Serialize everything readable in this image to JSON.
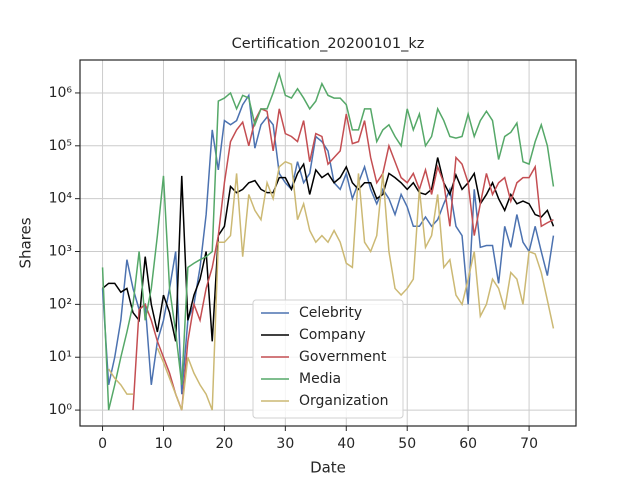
{
  "chart_data": {
    "type": "line",
    "title": "Certification_20200101_kz",
    "xlabel": "Date",
    "ylabel": "Shares",
    "x": [
      0,
      1,
      2,
      3,
      4,
      5,
      6,
      7,
      8,
      9,
      10,
      11,
      12,
      13,
      14,
      15,
      16,
      17,
      18,
      19,
      20,
      21,
      22,
      23,
      24,
      25,
      26,
      27,
      28,
      29,
      30,
      31,
      32,
      33,
      34,
      35,
      36,
      37,
      38,
      39,
      40,
      41,
      42,
      43,
      44,
      45,
      46,
      47,
      48,
      49,
      50,
      51,
      52,
      53,
      54,
      55,
      56,
      57,
      58,
      59,
      60,
      61,
      62,
      63,
      64,
      65,
      66,
      67,
      68,
      69,
      70,
      71,
      72,
      73,
      74
    ],
    "series": [
      {
        "name": "Celebrity",
        "color": "#4c72b0",
        "values": [
          200,
          3,
          10,
          50,
          700,
          200,
          80,
          100,
          3,
          20,
          50,
          200,
          1000,
          2,
          50,
          100,
          500,
          5000,
          200000,
          35000,
          300000,
          250000,
          300000,
          600000,
          900000,
          90000,
          250000,
          350000,
          250000,
          30000,
          20000,
          15000,
          50000,
          20000,
          30000,
          150000,
          120000,
          80000,
          20000,
          15000,
          30000,
          10000,
          20000,
          40000,
          15000,
          8000,
          15000,
          10000,
          5000,
          12000,
          7000,
          3000,
          3000,
          4500,
          3000,
          4000,
          8000,
          15000,
          3000,
          2000,
          100,
          15000,
          1200,
          1300,
          1300,
          250,
          3000,
          1200,
          5000,
          1500,
          1000,
          3000,
          1000,
          350,
          2000
        ]
      },
      {
        "name": "Company",
        "color": "#000000",
        "values": [
          200,
          250,
          250,
          170,
          200,
          70,
          50,
          800,
          100,
          30,
          150,
          70,
          20,
          27000,
          50,
          150,
          300,
          1000,
          20,
          2000,
          3000,
          17000,
          13000,
          15000,
          20000,
          22000,
          15000,
          13000,
          13000,
          25000,
          25000,
          15000,
          30000,
          45000,
          12000,
          35000,
          25000,
          30000,
          20000,
          25000,
          40000,
          20000,
          15000,
          20000,
          20000,
          10000,
          12000,
          30000,
          25000,
          20000,
          15000,
          20000,
          13000,
          12000,
          15000,
          60000,
          20000,
          12000,
          28000,
          15000,
          20000,
          30000,
          8000,
          12000,
          20000,
          10000,
          6000,
          12000,
          8000,
          9000,
          8000,
          5000,
          4500,
          6000,
          3000
        ]
      },
      {
        "name": "Government",
        "color": "#c44e52",
        "values": [
          null,
          null,
          null,
          null,
          null,
          1,
          80,
          100,
          50,
          20,
          10,
          5,
          2,
          1,
          20,
          100,
          50,
          200,
          500,
          2000,
          20000,
          120000,
          200000,
          280000,
          100000,
          300000,
          500000,
          450000,
          80000,
          500000,
          170000,
          150000,
          120000,
          300000,
          50000,
          170000,
          150000,
          45000,
          60000,
          80000,
          400000,
          110000,
          120000,
          300000,
          60000,
          20000,
          30000,
          100000,
          50000,
          25000,
          20000,
          30000,
          15000,
          35000,
          12000,
          40000,
          20000,
          3000,
          60000,
          45000,
          20000,
          2000,
          8000,
          30000,
          12000,
          20000,
          25000,
          9000,
          20000,
          25000,
          25000,
          40000,
          3000,
          3500,
          4000
        ]
      },
      {
        "name": "Media",
        "color": "#55a868",
        "values": [
          500,
          1,
          3,
          10,
          30,
          100,
          1000,
          50,
          200,
          2000,
          27000,
          200,
          30,
          3,
          500,
          600,
          700,
          800,
          1000,
          700000,
          800000,
          1000000,
          500000,
          900000,
          800000,
          250000,
          500000,
          500000,
          1000000,
          2300000,
          900000,
          800000,
          1200000,
          800000,
          500000,
          700000,
          1500000,
          900000,
          800000,
          800000,
          600000,
          200000,
          200000,
          500000,
          500000,
          120000,
          200000,
          250000,
          150000,
          100000,
          500000,
          200000,
          400000,
          100000,
          150000,
          500000,
          300000,
          150000,
          140000,
          150000,
          400000,
          150000,
          300000,
          450000,
          300000,
          55000,
          150000,
          180000,
          270000,
          50000,
          45000,
          120000,
          250000,
          100000,
          17000
        ]
      },
      {
        "name": "Organization",
        "color": "#ccb974",
        "values": [
          null,
          6,
          4,
          3,
          2,
          2,
          null,
          null,
          null,
          15,
          8,
          4,
          2,
          1,
          10,
          5,
          3,
          2,
          1,
          1500,
          1500,
          2000,
          30000,
          800,
          12000,
          6000,
          4000,
          20000,
          10000,
          40000,
          50000,
          45000,
          4000,
          8000,
          2500,
          1500,
          2000,
          1500,
          2500,
          1500,
          600,
          500,
          30000,
          1500,
          1000,
          2000,
          30000,
          1000,
          200,
          150,
          200,
          300,
          15000,
          1200,
          2000,
          12000,
          500,
          700,
          150,
          100,
          300,
          1000,
          60,
          100,
          300,
          200,
          80,
          400,
          300,
          100,
          1000,
          900,
          400,
          120,
          35
        ]
      }
    ],
    "xlim": [
      -3.7,
      77.7
    ],
    "xticks": [
      0,
      10,
      20,
      30,
      40,
      50,
      60,
      70
    ],
    "ylim": [
      0.5,
      4200000
    ],
    "log_y": true,
    "yticks": [
      {
        "value": 1,
        "label": "10⁰"
      },
      {
        "value": 10,
        "label": "10¹"
      },
      {
        "value": 100,
        "label": "10²"
      },
      {
        "value": 1000,
        "label": "10³"
      },
      {
        "value": 10000,
        "label": "10⁴"
      },
      {
        "value": 100000,
        "label": "10⁵"
      },
      {
        "value": 1000000,
        "label": "10⁶"
      }
    ],
    "grid": true,
    "legend_loc": "lower center"
  }
}
